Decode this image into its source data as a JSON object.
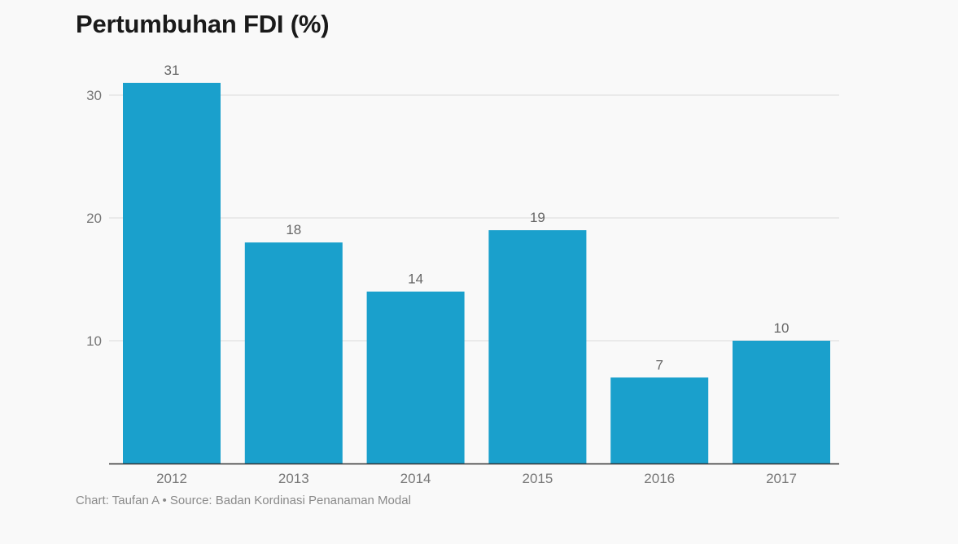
{
  "title": "Pertumbuhan FDI (%)",
  "footer": "Chart: Taufan A • Source: Badan Kordinasi Penanaman Modal",
  "chart_data": {
    "type": "bar",
    "categories": [
      "2012",
      "2013",
      "2014",
      "2015",
      "2016",
      "2017"
    ],
    "values": [
      31,
      18,
      14,
      19,
      7,
      10
    ],
    "ylim": [
      0,
      30
    ],
    "yticks": [
      10,
      20,
      30
    ],
    "grid": true,
    "bar_color": "#1aa0cc",
    "data_labels": true
  }
}
